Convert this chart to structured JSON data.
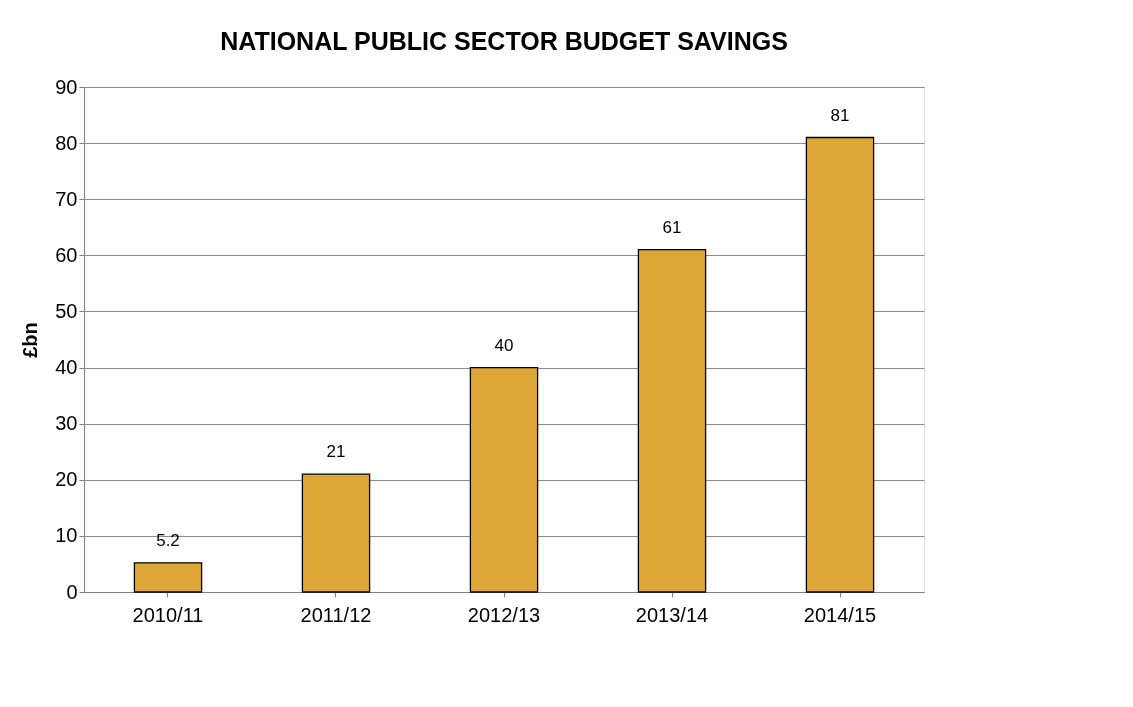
{
  "chart_data": {
    "type": "bar",
    "title": "NATIONAL PUBLIC SECTOR BUDGET SAVINGS",
    "ylabel": "£bn",
    "categories": [
      "2010/11",
      "2011/12",
      "2012/13",
      "2013/14",
      "2014/15"
    ],
    "values": [
      5.2,
      21,
      40,
      61,
      81
    ],
    "color": "#dda637",
    "ylim": [
      0,
      90
    ],
    "yticks": [
      0,
      10,
      20,
      30,
      40,
      50,
      60,
      70,
      80,
      90
    ],
    "grid": "y",
    "data_labels": true
  }
}
